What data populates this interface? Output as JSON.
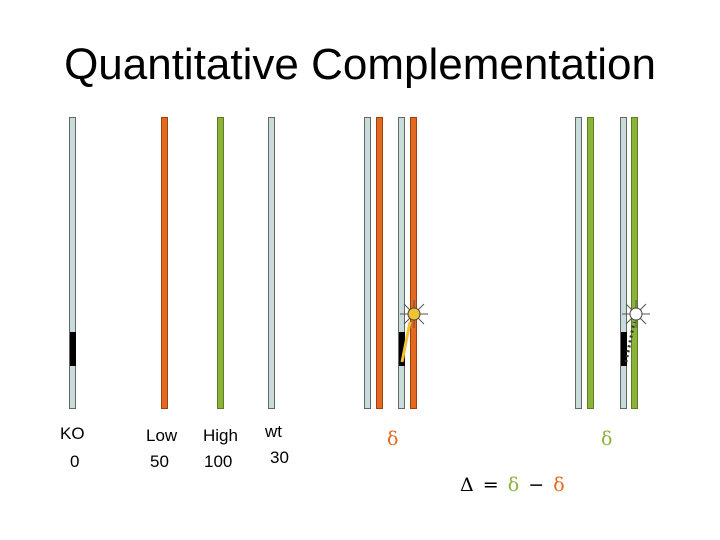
{
  "title": "Quantitative Complementation",
  "strains": [
    {
      "name": "KO",
      "value": "0"
    },
    {
      "name": "Low",
      "value": "50"
    },
    {
      "name": "High",
      "value": "100"
    },
    {
      "name": "wt",
      "value": "30"
    }
  ],
  "delta_low": "δ",
  "delta_high": "δ",
  "equation": {
    "big_delta": "Δ",
    "equals": "=",
    "d1": "δ",
    "minus": "−",
    "d2": "δ"
  },
  "colors": {
    "wt": "#c8dcdc",
    "low": "#e2691e",
    "high": "#8bb33a",
    "flash_low": "#f2c230",
    "flash_high": "#ffffff"
  }
}
